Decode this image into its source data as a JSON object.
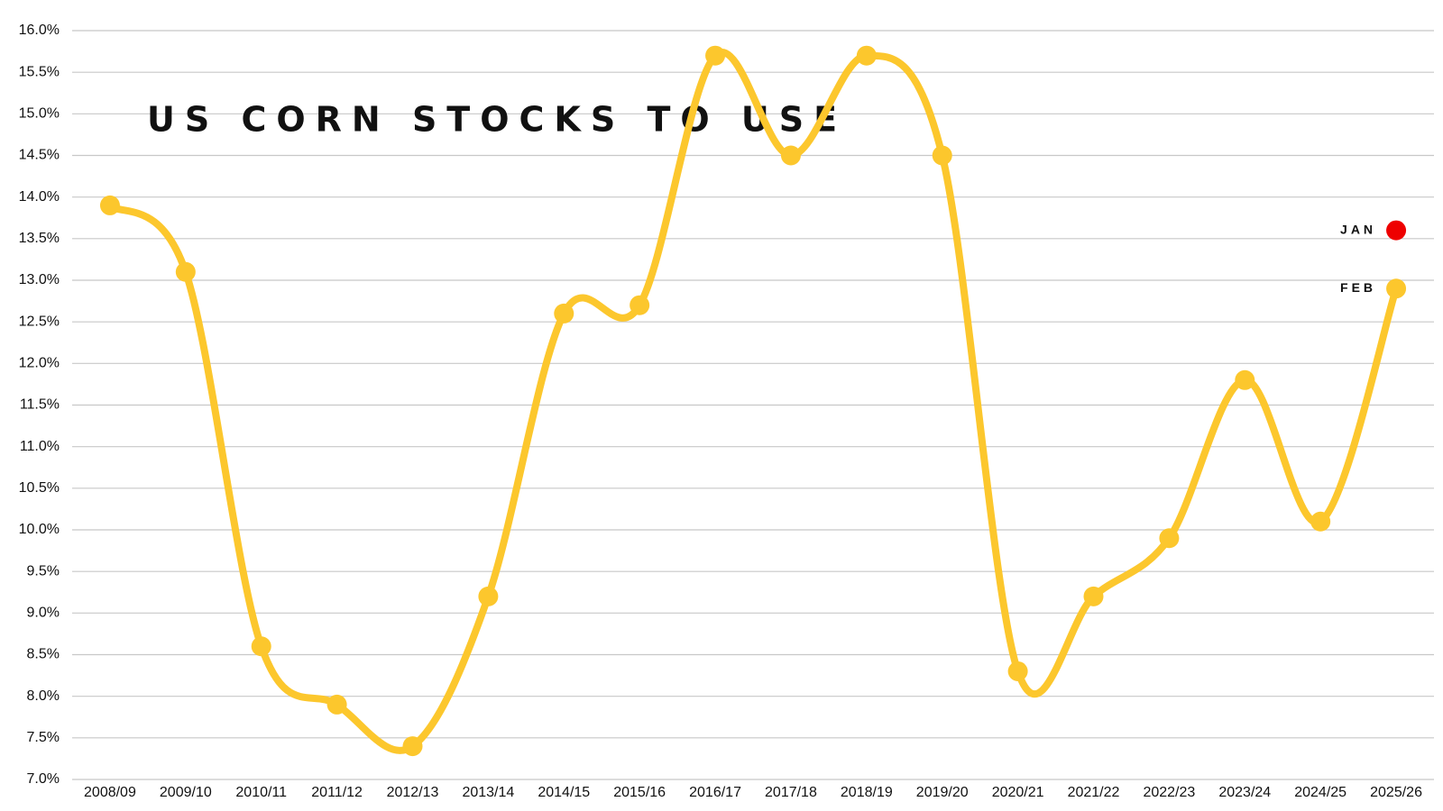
{
  "chart_data": {
    "type": "line",
    "title": "US CORN STOCKS TO USE",
    "categories": [
      "2008/09",
      "2009/10",
      "2010/11",
      "2011/12",
      "2012/13",
      "2013/14",
      "2014/15",
      "2015/16",
      "2016/17",
      "2017/18",
      "2018/19",
      "2019/20",
      "2020/21",
      "2021/22",
      "2022/23",
      "2023/24",
      "2024/25",
      "2025/26"
    ],
    "series": [
      {
        "name": "FEB",
        "color": "#fcc72d",
        "values": [
          13.9,
          13.1,
          8.6,
          7.9,
          7.4,
          9.2,
          12.6,
          12.7,
          15.7,
          14.5,
          15.7,
          14.5,
          8.3,
          9.2,
          9.9,
          11.8,
          10.1,
          12.9
        ]
      },
      {
        "name": "JAN",
        "color": "#ee0000",
        "values": [
          null,
          null,
          null,
          null,
          null,
          null,
          null,
          null,
          null,
          null,
          null,
          null,
          null,
          null,
          null,
          null,
          null,
          13.6
        ]
      }
    ],
    "ylim": [
      7.0,
      16.0
    ],
    "yticks": [
      {
        "value": 7.0,
        "label": "7.0%"
      },
      {
        "value": 7.5,
        "label": "7.5%"
      },
      {
        "value": 8.0,
        "label": "8.0%"
      },
      {
        "value": 8.5,
        "label": "8.5%"
      },
      {
        "value": 9.0,
        "label": "9.0%"
      },
      {
        "value": 9.5,
        "label": "9.5%"
      },
      {
        "value": 10.0,
        "label": "10.0%"
      },
      {
        "value": 10.5,
        "label": "10.5%"
      },
      {
        "value": 11.0,
        "label": "11.0%"
      },
      {
        "value": 11.5,
        "label": "11.5%"
      },
      {
        "value": 12.0,
        "label": "12.0%"
      },
      {
        "value": 12.5,
        "label": "12.5%"
      },
      {
        "value": 13.0,
        "label": "13.0%"
      },
      {
        "value": 13.5,
        "label": "13.5%"
      },
      {
        "value": 14.0,
        "label": "14.0%"
      },
      {
        "value": 14.5,
        "label": "14.5%"
      },
      {
        "value": 15.0,
        "label": "15.0%"
      },
      {
        "value": 15.5,
        "label": "15.5%"
      },
      {
        "value": 16.0,
        "label": "16.0%"
      }
    ],
    "grid": true
  }
}
